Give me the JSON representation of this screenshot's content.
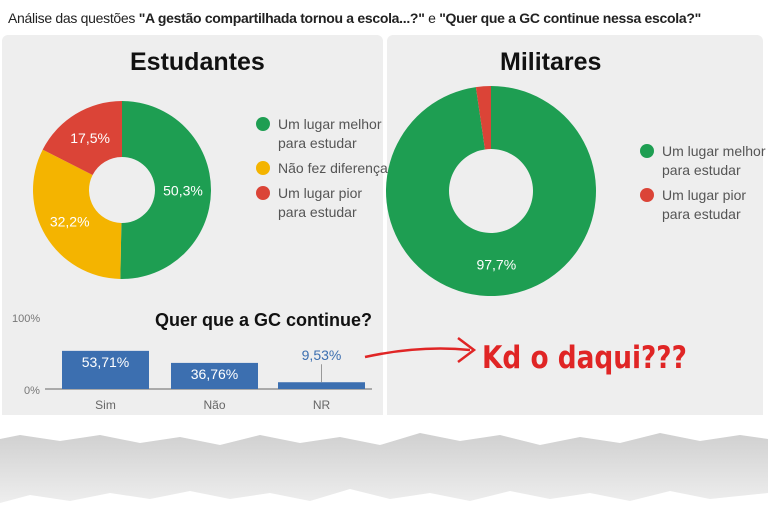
{
  "header": {
    "prefix": "Análise das questões ",
    "q1": "\"A gestão compartilhada tornou a escola...?\"",
    "mid": " e ",
    "q2": "\"Quer que a GC continue nessa escola?\""
  },
  "chart_data": [
    {
      "type": "pie",
      "title": "Estudantes",
      "labels": [
        "Um lugar melhor para estudar",
        "Não fez diferença",
        "Um lugar pior para estudar"
      ],
      "values": [
        50.3,
        32.2,
        17.5
      ],
      "value_labels": [
        "50,3%",
        "32,2%",
        "17,5%"
      ],
      "colors": [
        "#1e9e52",
        "#f4b400",
        "#db4437"
      ]
    },
    {
      "type": "pie",
      "title": "Militares",
      "labels": [
        "Um lugar melhor para estudar",
        "Um lugar pior para estudar"
      ],
      "values": [
        97.7,
        2.3
      ],
      "value_labels": [
        "97,7%",
        ""
      ],
      "colors": [
        "#1e9e52",
        "#db4437"
      ]
    },
    {
      "type": "bar",
      "title": "Quer que a GC continue?",
      "categories": [
        "Sim",
        "Não",
        "NR"
      ],
      "values": [
        53.71,
        36.76,
        9.53
      ],
      "value_labels": [
        "53,71%",
        "36,76%",
        "9,53%"
      ],
      "ylim": [
        0,
        100
      ],
      "yticks": [
        "0%",
        "100%"
      ],
      "color": "#3c6fb0"
    }
  ],
  "annotation": "Kd o daqui???"
}
